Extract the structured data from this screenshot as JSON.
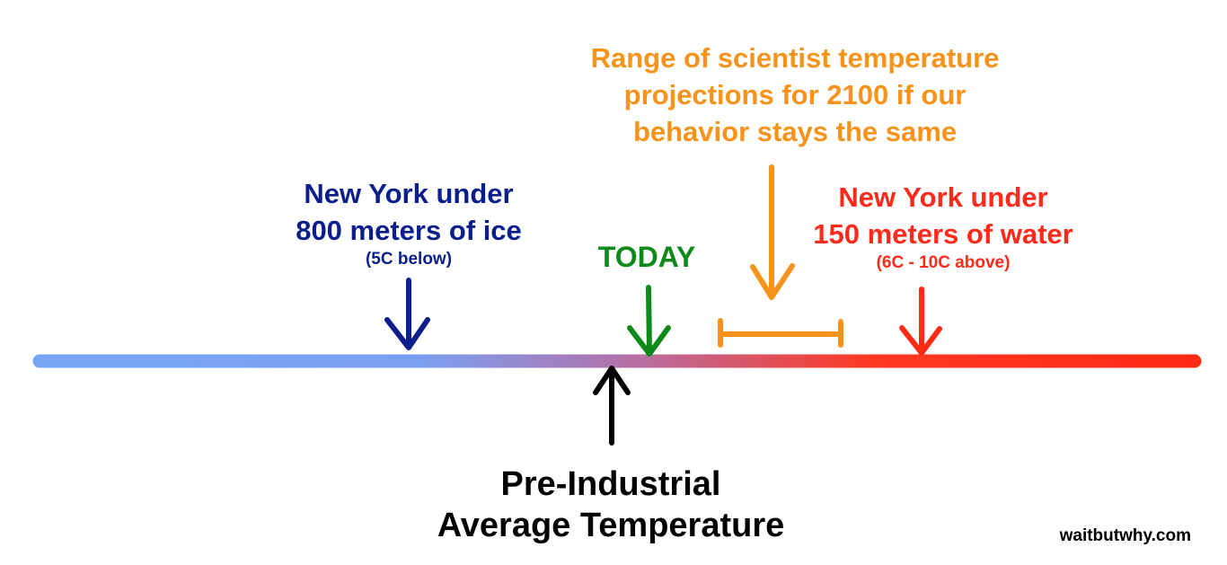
{
  "colors": {
    "cold": "#77a6f7",
    "mid": "#b073ad",
    "hot": "#ff2a14",
    "ice_label": "#0b1f8c",
    "today": "#0d8a1a",
    "projection": "#f7931a",
    "water_label": "#ff2a1a",
    "baseline": "#000000"
  },
  "labels": {
    "ice": {
      "line1": "New York under",
      "line2": "800 meters of ice",
      "sub": "(5C below)"
    },
    "today": "TODAY",
    "projection": {
      "line1": "Range of scientist temperature",
      "line2": "projections for 2100 if our",
      "line3": "behavior stays the same"
    },
    "water": {
      "line1": "New York under",
      "line2": "150 meters of water",
      "sub": "(6C - 10C above)"
    },
    "preindustrial": {
      "line1": "Pre-Industrial",
      "line2": "Average Temperature"
    }
  },
  "watermark": "waitbutwhy.com",
  "icons": {
    "ice_arrow": "down-arrow-icon",
    "today_arrow": "down-arrow-icon",
    "projection_arrow": "down-arrow-icon",
    "water_arrow": "down-arrow-icon",
    "preindustrial_arrow": "up-arrow-icon"
  }
}
